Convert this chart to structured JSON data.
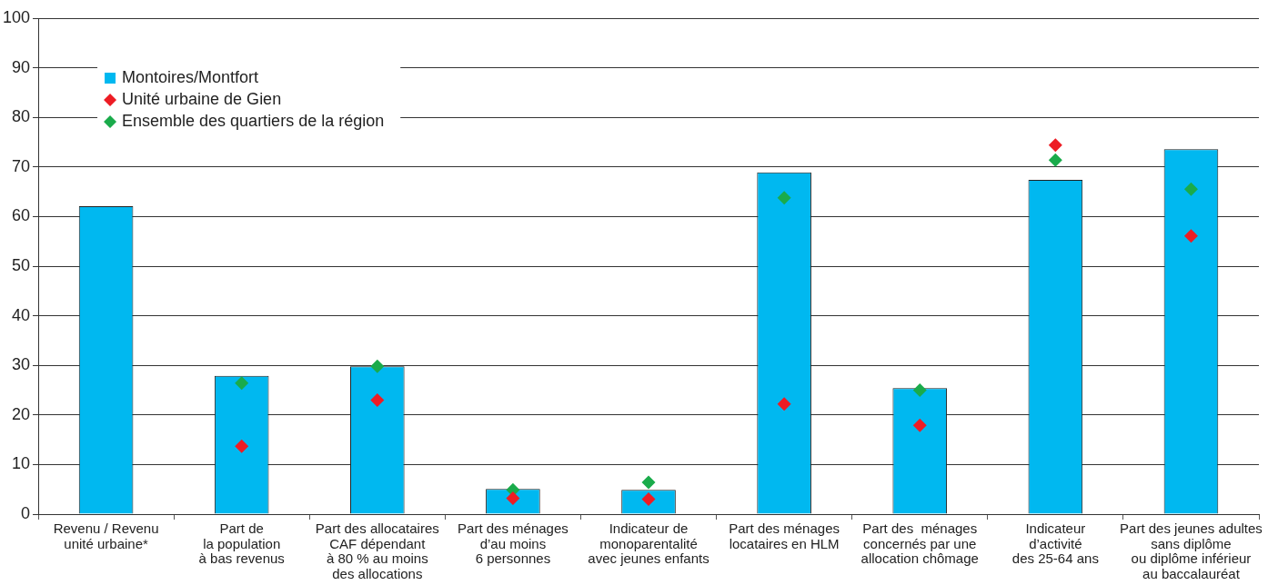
{
  "chart_data": {
    "type": "bar",
    "categories": [
      "Revenu / Revenu\nunité urbaine*",
      "Part de\nla population\nà bas revenus",
      "Part des allocataires\nCAF dépendant\nà 80 % au moins\ndes allocations",
      "Part des ménages\nd’au moins\n6 personnes",
      "Indicateur de\nmonoparentalité\navec jeunes enfants",
      "Part des ménages\nlocataires en HLM",
      "Part des  ménages\nconcernés par une\nallocation chômage",
      "Indicateur\nd’activité\ndes 25-64 ans",
      "Part des jeunes adultes\nsans diplôme\nou diplôme inférieur\nau baccalauréat"
    ],
    "series": [
      {
        "name": "Montoires/Montfort",
        "color": "#00b8f0",
        "values": [
          62.1,
          27.9,
          29.8,
          5.1,
          4.9,
          68.9,
          25.4,
          67.4,
          73.6
        ]
      },
      {
        "name": "Unité urbaine de Gien",
        "type": "scatter",
        "marker": "diamond",
        "color": "#ed1c24",
        "values": [
          null,
          13.7,
          23,
          3.2,
          3,
          22.2,
          17.9,
          74.4,
          56.1
        ]
      },
      {
        "name": "Ensemble des quartiers de la région",
        "type": "scatter",
        "marker": "diamond",
        "color": "#1aab4b",
        "values": [
          null,
          26.4,
          29.8,
          4.9,
          6.4,
          63.8,
          25,
          71.4,
          65.5
        ]
      }
    ],
    "ylim": [
      0,
      100
    ],
    "yticks": [
      0,
      10,
      20,
      30,
      40,
      50,
      60,
      70,
      80,
      90,
      100
    ],
    "grid": "y",
    "legend": "top left"
  }
}
